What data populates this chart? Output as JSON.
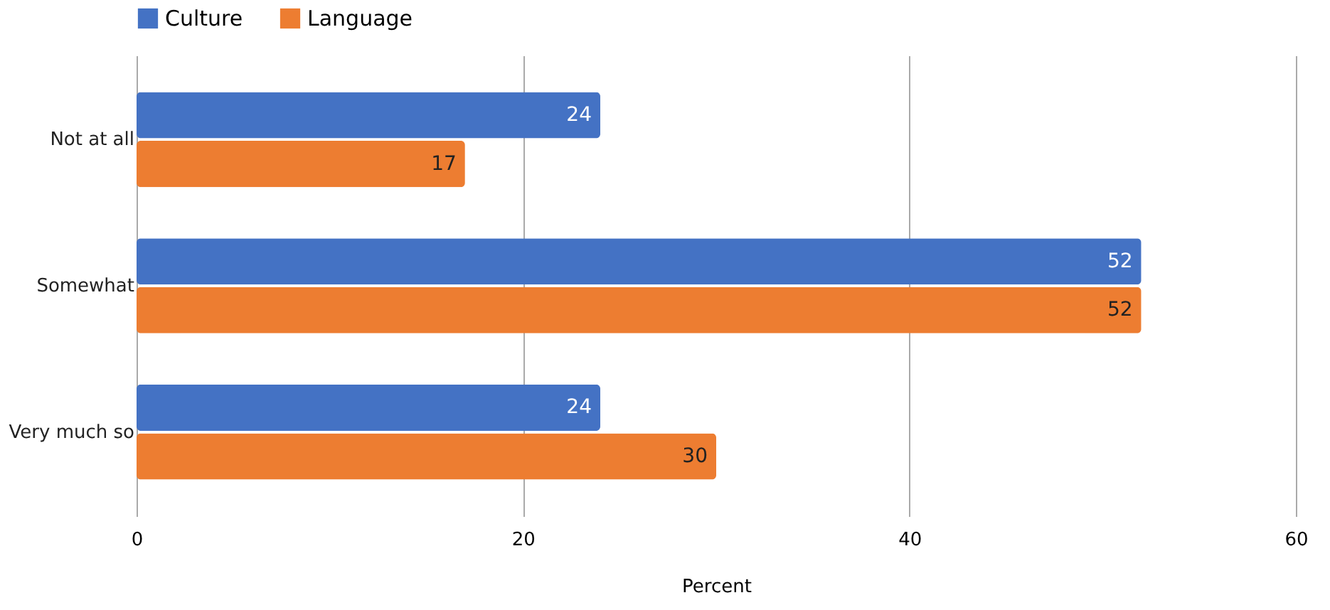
{
  "chart_data": {
    "type": "bar",
    "orientation": "horizontal",
    "categories": [
      "Not at all",
      "Somewhat",
      "Very much so"
    ],
    "series": [
      {
        "name": "Culture",
        "color": "#4472c4",
        "values": [
          24,
          52,
          24
        ]
      },
      {
        "name": "Language",
        "color": "#ed7d31",
        "values": [
          17,
          52,
          30
        ]
      }
    ],
    "xlabel": "Percent",
    "xlim": [
      0,
      60
    ],
    "xticks": [
      0,
      20,
      40,
      60
    ],
    "grid": "x",
    "legend": "top",
    "data_labels": true
  }
}
